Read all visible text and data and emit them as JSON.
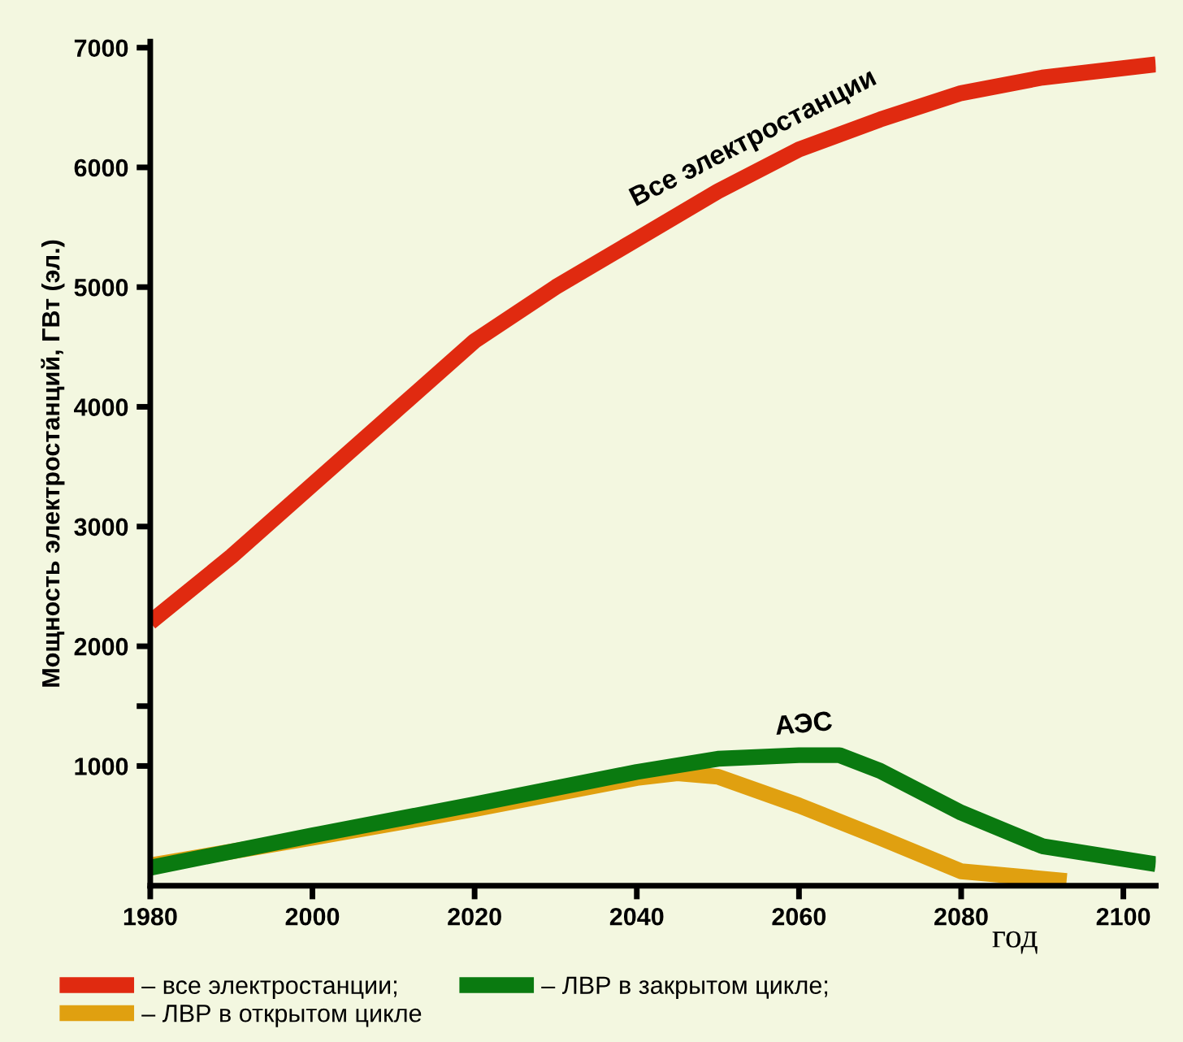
{
  "chart_data": {
    "type": "line",
    "ylabel": "Мощность электростанций, ГВт (эл.)",
    "xlabel": "год",
    "xlim": [
      1980,
      2104
    ],
    "xticks": [
      1980,
      2000,
      2020,
      2040,
      2060,
      2080,
      2100
    ],
    "ylim": [
      0,
      7050
    ],
    "yticks": [
      1000,
      {
        "value": 1500,
        "label": null
      },
      2000,
      3000,
      4000,
      5000,
      6000,
      7000
    ],
    "grid": false,
    "legend": "bottom",
    "line_style": "solid",
    "marker": "none",
    "annotations": [
      "Все электростанции",
      "АЭС"
    ],
    "series": [
      {
        "name": "– все электростанции;",
        "color": "#e02a10",
        "x": [
          1980,
          1990,
          2000,
          2010,
          2020,
          2030,
          2040,
          2050,
          2060,
          2070,
          2080,
          2090,
          2104
        ],
        "values": [
          2200,
          2750,
          3350,
          3950,
          4550,
          5000,
          5400,
          5800,
          6150,
          6400,
          6620,
          6750,
          6860
        ]
      },
      {
        "name": "– ЛВР в открытом цикле",
        "color": "#e0a010",
        "x": [
          1980,
          2000,
          2020,
          2040,
          2045,
          2050,
          2060,
          2070,
          2080,
          2093
        ],
        "values": [
          170,
          400,
          640,
          900,
          940,
          910,
          670,
          400,
          120,
          40
        ]
      },
      {
        "name": "– ЛВР в закрытом цикле;",
        "color": "#0a7a10",
        "x": [
          1980,
          2000,
          2020,
          2040,
          2050,
          2060,
          2065,
          2070,
          2080,
          2090,
          2104
        ],
        "values": [
          150,
          420,
          680,
          950,
          1060,
          1090,
          1090,
          960,
          610,
          330,
          180
        ]
      }
    ]
  }
}
